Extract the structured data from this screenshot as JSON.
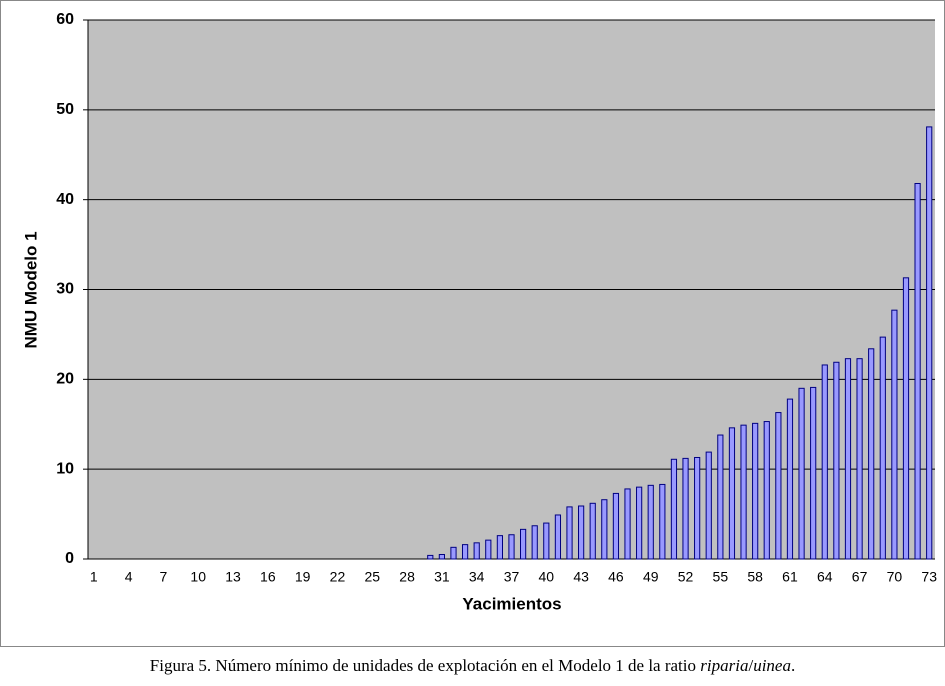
{
  "chart_data": {
    "type": "bar",
    "ylabel": "NMU Modelo 1",
    "xlabel": "Yacimientos",
    "categories": [
      "1",
      null,
      null,
      "4",
      null,
      null,
      "7",
      null,
      null,
      "10",
      null,
      null,
      "13",
      null,
      null,
      "16",
      null,
      null,
      "19",
      null,
      null,
      "22",
      null,
      null,
      "25",
      null,
      null,
      "28",
      null,
      null,
      "31",
      null,
      null,
      "34",
      null,
      null,
      "37",
      null,
      null,
      "40",
      null,
      null,
      "43",
      null,
      null,
      "46",
      null,
      null,
      "49",
      null,
      null,
      "52",
      null,
      null,
      "55",
      null,
      null,
      "58",
      null,
      null,
      "61",
      null,
      null,
      "64",
      null,
      null,
      "67",
      null,
      null,
      "70",
      null,
      null,
      "73"
    ],
    "values": [
      0,
      0,
      0,
      0,
      0,
      0,
      0,
      0,
      0,
      0,
      0,
      0,
      0,
      0,
      0,
      0,
      0,
      0,
      0,
      0,
      0,
      0,
      0,
      0,
      0,
      0,
      0,
      0,
      0,
      0.4,
      0.5,
      1.3,
      1.6,
      1.8,
      2.1,
      2.6,
      2.7,
      3.3,
      3.7,
      4.0,
      4.9,
      5.8,
      5.9,
      6.2,
      6.6,
      7.3,
      7.8,
      8.0,
      8.2,
      8.3,
      11.1,
      11.2,
      11.3,
      11.9,
      13.8,
      14.6,
      14.9,
      15.1,
      15.3,
      16.3,
      17.8,
      19.0,
      19.1,
      21.6,
      21.9,
      22.3,
      22.3,
      23.4,
      24.7,
      27.7,
      31.3,
      41.8,
      48.1
    ],
    "color": "#9999ff",
    "edge": "#000080",
    "ylim": [
      0,
      60
    ],
    "yticks": [
      0,
      10,
      20,
      30,
      40,
      50,
      60
    ],
    "grid": true
  },
  "caption": [
    "Figura 5. Número mínimo de unidades de explotación en el Modelo 1 de la ratio ",
    "riparia",
    "/",
    "uinea",
    "."
  ]
}
